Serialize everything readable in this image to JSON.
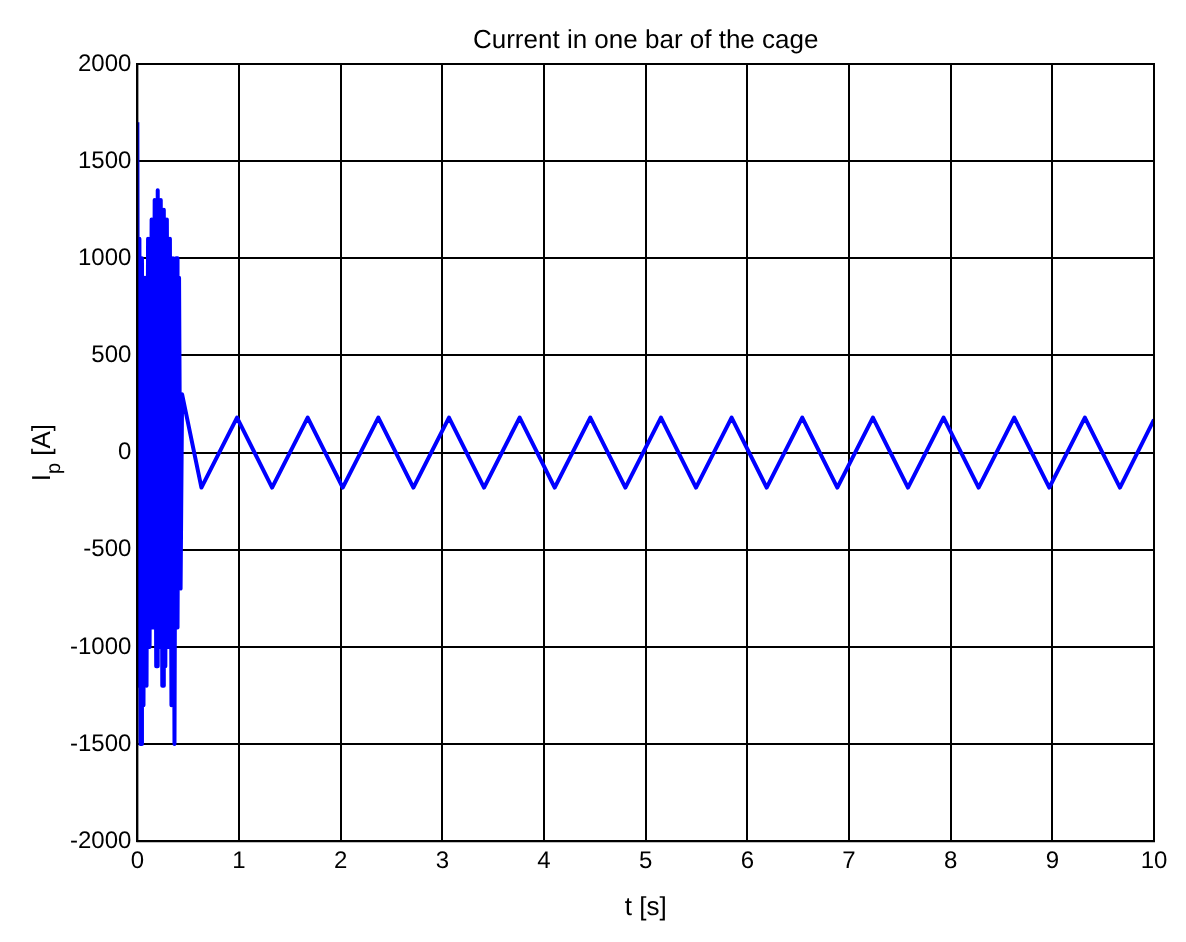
{
  "chart_data": {
    "type": "line",
    "title": "Current in one bar of the cage",
    "xlabel": "t [s]",
    "ylabel": "I$_{p}$ [A]",
    "xlim": [
      0,
      10
    ],
    "xticks": [
      0,
      1,
      2,
      3,
      4,
      5,
      6,
      7,
      8,
      9,
      10
    ],
    "ylim": [
      -2000,
      2000
    ],
    "yticks": [
      -2000,
      -1500,
      -1000,
      -500,
      0,
      500,
      1000,
      1500,
      2000
    ],
    "grid": true,
    "series": [
      {
        "color": "#0000ff",
        "x": [
          0,
          0.01,
          0.02,
          0.03,
          0.045,
          0.06,
          0.075,
          0.09,
          0.105,
          0.12,
          0.14,
          0.155,
          0.17,
          0.185,
          0.2,
          0.215,
          0.23,
          0.245,
          0.26,
          0.275,
          0.29,
          0.305,
          0.32,
          0.335,
          0.35,
          0.365,
          0.38,
          0.395,
          0.41,
          0.425,
          0.44,
          0.63,
          0.98,
          1.325,
          1.675,
          2.02,
          2.37,
          2.715,
          3.065,
          3.41,
          3.76,
          4.105,
          4.455,
          4.8,
          5.15,
          5.495,
          5.845,
          6.19,
          6.54,
          6.885,
          7.235,
          7.58,
          7.93,
          8.275,
          8.625,
          8.97,
          9.32,
          9.665,
          10
        ],
        "values": [
          1700,
          -1200,
          1100,
          -1500,
          1000,
          -1300,
          900,
          -1200,
          1100,
          -1000,
          1200,
          -900,
          1300,
          -1100,
          1350,
          -1000,
          1300,
          -1200,
          1250,
          -1100,
          1200,
          -1000,
          1100,
          -1300,
          1000,
          -1500,
          1000,
          -900,
          900,
          -700,
          300,
          -180,
          180,
          -180,
          180,
          -180,
          180,
          -180,
          180,
          -180,
          180,
          -180,
          180,
          -180,
          180,
          -180,
          180,
          -180,
          180,
          -180,
          180,
          -180,
          180,
          -180,
          180,
          -180,
          180,
          -180,
          170
        ]
      }
    ]
  }
}
